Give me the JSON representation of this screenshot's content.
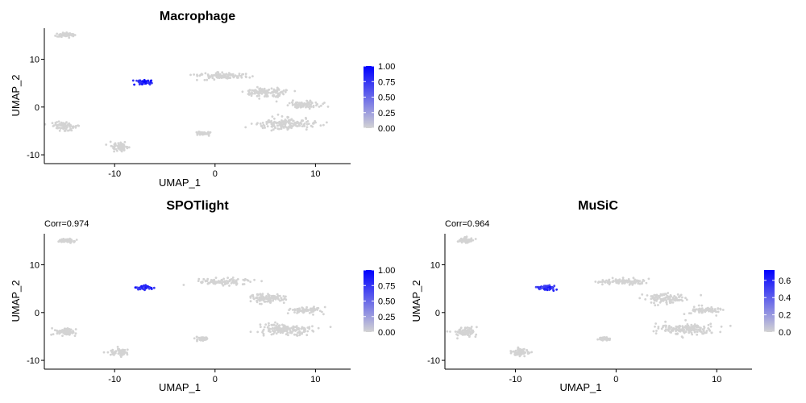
{
  "chart_data": [
    {
      "type": "scatter",
      "title": "Macrophage",
      "subtitle": "",
      "xlabel": "UMAP_1",
      "ylabel": "UMAP_2",
      "xlim": [
        -17,
        13.5
      ],
      "ylim": [
        -11,
        16.5
      ],
      "xticks": [
        -10,
        0,
        10
      ],
      "yticks": [
        -10,
        0,
        10
      ],
      "grid": false,
      "legend": {
        "placement": "right",
        "min": 0,
        "max": 1,
        "ticks": [
          "1.00",
          "0.75",
          "0.50",
          "0.25",
          "0.00"
        ],
        "tick_values": [
          1,
          0.75,
          0.5,
          0.25,
          0
        ]
      },
      "colors": {
        "low": "#d3d3d3",
        "high": "#0000ff"
      },
      "clusters": [
        {
          "label": "top-left island",
          "center": [
            -14.8,
            15.1
          ],
          "spread": [
            0.8,
            0.4
          ],
          "value": 0
        },
        {
          "label": "macrophage cluster",
          "center": [
            -7.0,
            5.2
          ],
          "spread": [
            0.7,
            0.5
          ],
          "value": 0.85
        },
        {
          "label": "mid-left cluster",
          "center": [
            -15.0,
            -4.0
          ],
          "spread": [
            1.0,
            0.8
          ],
          "value": 0
        },
        {
          "label": "bottom-left cluster",
          "center": [
            -9.5,
            -8.3
          ],
          "spread": [
            0.8,
            0.7
          ],
          "value": 0
        },
        {
          "label": "small bottom cluster",
          "center": [
            -1.2,
            -5.5
          ],
          "spread": [
            0.6,
            0.3
          ],
          "value": 0
        },
        {
          "label": "central branch",
          "center": [
            0.8,
            6.5
          ],
          "spread": [
            2.3,
            0.6
          ],
          "value": 0
        },
        {
          "label": "branch middle",
          "center": [
            5.0,
            3.0
          ],
          "spread": [
            1.8,
            0.9
          ],
          "value": 0
        },
        {
          "label": "right branch",
          "center": [
            9.0,
            0.5
          ],
          "spread": [
            1.5,
            0.6
          ],
          "value": 0
        },
        {
          "label": "lower branch",
          "center": [
            7.0,
            -3.5
          ],
          "spread": [
            2.5,
            1.1
          ],
          "value": 0
        }
      ]
    },
    {
      "type": "scatter",
      "title": "SPOTlight",
      "subtitle": "Corr=0.974",
      "xlabel": "UMAP_1",
      "ylabel": "UMAP_2",
      "xlim": [
        -17,
        13.5
      ],
      "ylim": [
        -11,
        16.5
      ],
      "xticks": [
        -10,
        0,
        10
      ],
      "yticks": [
        -10,
        0,
        10
      ],
      "grid": false,
      "legend": {
        "placement": "right",
        "min": 0,
        "max": 1,
        "ticks": [
          "1.00",
          "0.75",
          "0.50",
          "0.25",
          "0.00"
        ],
        "tick_values": [
          1,
          0.75,
          0.5,
          0.25,
          0
        ]
      },
      "colors": {
        "low": "#d3d3d3",
        "high": "#0000ff"
      },
      "clusters": [
        {
          "label": "top-left island",
          "center": [
            -14.8,
            15.1
          ],
          "spread": [
            0.8,
            0.4
          ],
          "value": 0
        },
        {
          "label": "macrophage cluster",
          "center": [
            -7.0,
            5.2
          ],
          "spread": [
            0.7,
            0.5
          ],
          "value": 0.8
        },
        {
          "label": "mid-left cluster",
          "center": [
            -15.0,
            -4.0
          ],
          "spread": [
            1.0,
            0.8
          ],
          "value": 0
        },
        {
          "label": "bottom-left cluster",
          "center": [
            -9.5,
            -8.3
          ],
          "spread": [
            0.8,
            0.7
          ],
          "value": 0
        },
        {
          "label": "small bottom cluster",
          "center": [
            -1.2,
            -5.5
          ],
          "spread": [
            0.6,
            0.3
          ],
          "value": 0
        },
        {
          "label": "central branch",
          "center": [
            0.8,
            6.5
          ],
          "spread": [
            2.3,
            0.6
          ],
          "value": 0
        },
        {
          "label": "branch middle",
          "center": [
            5.0,
            3.0
          ],
          "spread": [
            1.8,
            0.9
          ],
          "value": 0
        },
        {
          "label": "right branch",
          "center": [
            9.0,
            0.5
          ],
          "spread": [
            1.5,
            0.6
          ],
          "value": 0
        },
        {
          "label": "lower branch",
          "center": [
            7.0,
            -3.5
          ],
          "spread": [
            2.5,
            1.1
          ],
          "value": 0
        }
      ]
    },
    {
      "type": "scatter",
      "title": "MuSiC",
      "subtitle": "Corr=0.964",
      "xlabel": "UMAP_1",
      "ylabel": "UMAP_2",
      "xlim": [
        -17,
        13.5
      ],
      "ylim": [
        -11,
        16.5
      ],
      "xticks": [
        -10,
        0,
        10
      ],
      "yticks": [
        -10,
        0,
        10
      ],
      "grid": false,
      "legend": {
        "placement": "right",
        "min": 0,
        "max": 0.72,
        "ticks": [
          "0.6",
          "0.4",
          "0.2",
          "0.0"
        ],
        "tick_values": [
          0.6,
          0.4,
          0.2,
          0
        ]
      },
      "colors": {
        "low": "#d3d3d3",
        "high": "#0000ff"
      },
      "clusters": [
        {
          "label": "top-left island",
          "center": [
            -14.8,
            15.1
          ],
          "spread": [
            0.8,
            0.4
          ],
          "value": 0
        },
        {
          "label": "macrophage cluster",
          "center": [
            -7.0,
            5.2
          ],
          "spread": [
            0.7,
            0.5
          ],
          "value": 0.55
        },
        {
          "label": "mid-left cluster",
          "center": [
            -15.0,
            -4.0
          ],
          "spread": [
            1.0,
            0.8
          ],
          "value": 0
        },
        {
          "label": "bottom-left cluster",
          "center": [
            -9.5,
            -8.3
          ],
          "spread": [
            0.8,
            0.7
          ],
          "value": 0
        },
        {
          "label": "small bottom cluster",
          "center": [
            -1.2,
            -5.5
          ],
          "spread": [
            0.6,
            0.3
          ],
          "value": 0
        },
        {
          "label": "central branch",
          "center": [
            0.8,
            6.5
          ],
          "spread": [
            2.3,
            0.6
          ],
          "value": 0
        },
        {
          "label": "branch middle",
          "center": [
            5.0,
            3.0
          ],
          "spread": [
            1.8,
            0.9
          ],
          "value": 0
        },
        {
          "label": "right branch",
          "center": [
            9.0,
            0.5
          ],
          "spread": [
            1.5,
            0.6
          ],
          "value": 0
        },
        {
          "label": "lower branch",
          "center": [
            7.0,
            -3.5
          ],
          "spread": [
            2.5,
            1.1
          ],
          "value": 0
        }
      ]
    }
  ]
}
